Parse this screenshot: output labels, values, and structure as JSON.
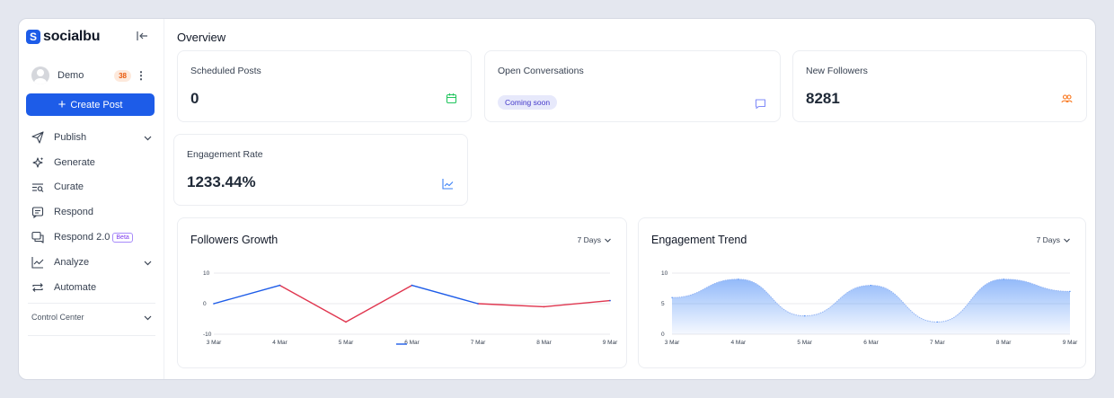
{
  "app": {
    "logo_mark": "S",
    "logo_text": "socialbu",
    "collapse_icon": "collapse-left-icon"
  },
  "user": {
    "name": "Demo",
    "count": "38"
  },
  "sidebar": {
    "create_post": "Create Post",
    "items": [
      {
        "label": "Publish",
        "icon": "send-icon",
        "expandable": true
      },
      {
        "label": "Generate",
        "icon": "sparkle-icon",
        "expandable": false
      },
      {
        "label": "Curate",
        "icon": "curate-icon",
        "expandable": false
      },
      {
        "label": "Respond",
        "icon": "message-icon",
        "expandable": false
      },
      {
        "label": "Respond 2.0",
        "icon": "messages-icon",
        "expandable": false,
        "badge": "Beta"
      },
      {
        "label": "Analyze",
        "icon": "chart-icon",
        "expandable": true
      },
      {
        "label": "Automate",
        "icon": "repeat-icon",
        "expandable": false
      }
    ],
    "control_center": "Control Center"
  },
  "page": {
    "title": "Overview"
  },
  "cards": {
    "scheduled": {
      "label": "Scheduled Posts",
      "value": "0",
      "icon": "calendar-icon",
      "color": "#22c55e"
    },
    "conversations": {
      "label": "Open Conversations",
      "status": "Coming soon",
      "icon": "chat-icon",
      "color": "#818cf8"
    },
    "followers": {
      "label": "New Followers",
      "value": "8281",
      "icon": "users-icon",
      "color": "#f97316"
    },
    "engagement": {
      "label": "Engagement Rate",
      "value": "1233.44%",
      "icon": "trend-icon",
      "color": "#3b82f6"
    }
  },
  "charts": {
    "followers_growth": {
      "title": "Followers Growth",
      "range": "7 Days"
    },
    "engagement_trend": {
      "title": "Engagement Trend",
      "range": "7 Days"
    }
  },
  "chart_data": [
    {
      "type": "line",
      "title": "Followers Growth",
      "x": [
        "3 Mar",
        "4 Mar",
        "5 Mar",
        "6 Mar",
        "7 Mar",
        "8 Mar",
        "9 Mar"
      ],
      "series": [
        {
          "values": [
            0,
            6,
            -6,
            6,
            0,
            -1,
            1
          ]
        }
      ],
      "yticks": [
        10,
        0,
        -10
      ],
      "ylim": [
        -10,
        10
      ],
      "colors": {
        "positive": "#1d5ce8",
        "negative": "#e0364f"
      },
      "grid": true
    },
    {
      "type": "area",
      "title": "Engagement Trend",
      "x": [
        "3 Mar",
        "4 Mar",
        "5 Mar",
        "6 Mar",
        "7 Mar",
        "8 Mar",
        "9 Mar"
      ],
      "series": [
        {
          "values": [
            6,
            9,
            3,
            8,
            2,
            9,
            7
          ]
        }
      ],
      "yticks": [
        10,
        5,
        0
      ],
      "ylim": [
        0,
        10
      ],
      "colors": {
        "fill": "#3b82f6"
      },
      "grid": true
    }
  ]
}
